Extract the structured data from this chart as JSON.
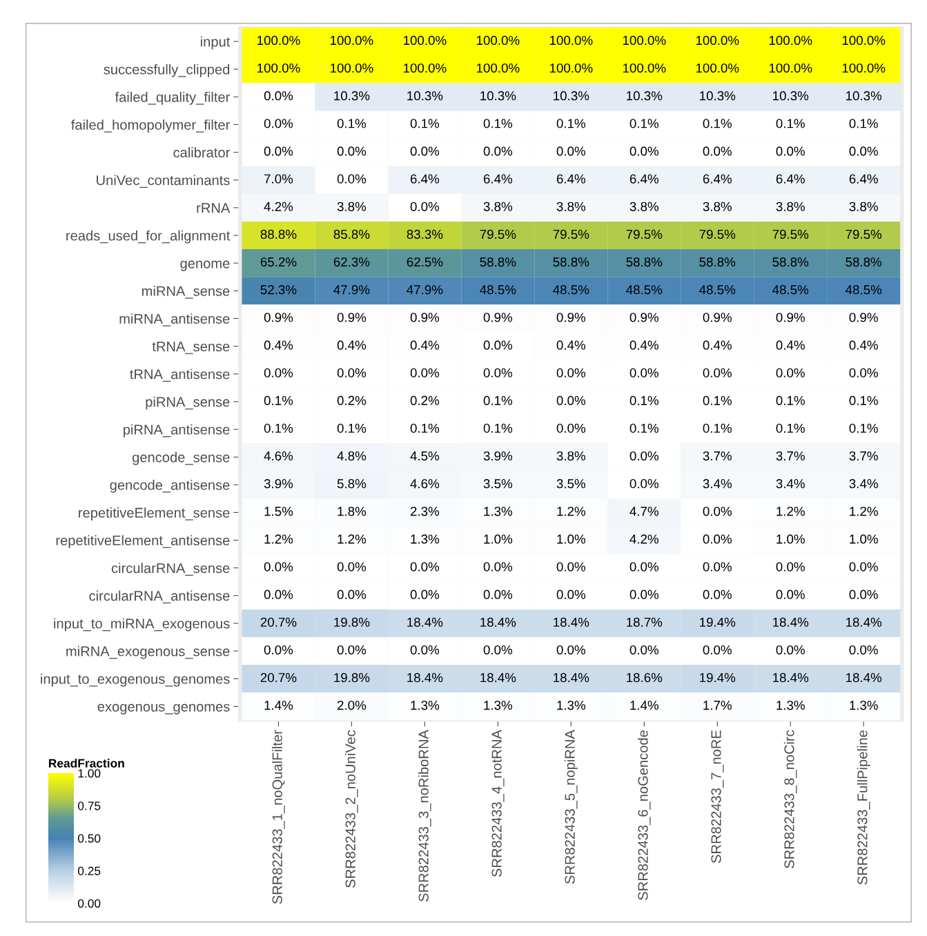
{
  "chart_data": {
    "type": "heatmap",
    "clabel": "ReadFraction",
    "categories": [
      "SRR822433_1_noQualFilter",
      "SRR822433_2_noUniVec",
      "SRR822433_3_noRiboRNA",
      "SRR822433_4_notRNA",
      "SRR822433_5_nopiRNA",
      "SRR822433_6_noGencode",
      "SRR822433_7_noRE",
      "SRR822433_8_noCirc",
      "SRR822433_FullPipeline"
    ],
    "y_categories": [
      "input",
      "successfully_clipped",
      "failed_quality_filter",
      "failed_homopolymer_filter",
      "calibrator",
      "UniVec_contaminants",
      "rRNA",
      "reads_used_for_alignment",
      "genome",
      "miRNA_sense",
      "miRNA_antisense",
      "tRNA_sense",
      "tRNA_antisense",
      "piRNA_sense",
      "piRNA_antisense",
      "gencode_sense",
      "gencode_antisense",
      "repetitiveElement_sense",
      "repetitiveElement_antisense",
      "circularRNA_sense",
      "circularRNA_antisense",
      "input_to_miRNA_exogenous",
      "miRNA_exogenous_sense",
      "input_to_exogenous_genomes",
      "exogenous_genomes"
    ],
    "cells": [
      [
        1.0,
        1.0,
        1.0,
        1.0,
        1.0,
        1.0,
        1.0,
        1.0,
        1.0
      ],
      [
        1.0,
        1.0,
        1.0,
        1.0,
        1.0,
        1.0,
        1.0,
        1.0,
        1.0
      ],
      [
        0.0,
        0.103,
        0.103,
        0.103,
        0.103,
        0.103,
        0.103,
        0.103,
        0.103
      ],
      [
        0.0,
        0.001,
        0.001,
        0.001,
        0.001,
        0.001,
        0.001,
        0.001,
        0.001
      ],
      [
        0.0,
        0.0,
        0.0,
        0.0,
        0.0,
        0.0,
        0.0,
        0.0,
        0.0
      ],
      [
        0.07,
        0.0,
        0.064,
        0.064,
        0.064,
        0.064,
        0.064,
        0.064,
        0.064
      ],
      [
        0.042,
        0.038,
        0.0,
        0.038,
        0.038,
        0.038,
        0.038,
        0.038,
        0.038
      ],
      [
        0.888,
        0.858,
        0.833,
        0.795,
        0.795,
        0.795,
        0.795,
        0.795,
        0.795
      ],
      [
        0.652,
        0.623,
        0.625,
        0.588,
        0.588,
        0.588,
        0.588,
        0.588,
        0.588
      ],
      [
        0.523,
        0.479,
        0.479,
        0.485,
        0.485,
        0.485,
        0.485,
        0.485,
        0.485
      ],
      [
        0.009,
        0.009,
        0.009,
        0.009,
        0.009,
        0.009,
        0.009,
        0.009,
        0.009
      ],
      [
        0.004,
        0.004,
        0.004,
        0.0,
        0.004,
        0.004,
        0.004,
        0.004,
        0.004
      ],
      [
        0.0,
        0.0,
        0.0,
        0.0,
        0.0,
        0.0,
        0.0,
        0.0,
        0.0
      ],
      [
        0.001,
        0.002,
        0.002,
        0.001,
        0.0,
        0.001,
        0.001,
        0.001,
        0.001
      ],
      [
        0.001,
        0.001,
        0.001,
        0.001,
        0.0,
        0.001,
        0.001,
        0.001,
        0.001
      ],
      [
        0.046,
        0.048,
        0.045,
        0.039,
        0.038,
        0.0,
        0.037,
        0.037,
        0.037
      ],
      [
        0.039,
        0.058,
        0.046,
        0.035,
        0.035,
        0.0,
        0.034,
        0.034,
        0.034
      ],
      [
        0.015,
        0.018,
        0.023,
        0.013,
        0.012,
        0.047,
        0.0,
        0.012,
        0.012
      ],
      [
        0.012,
        0.012,
        0.013,
        0.01,
        0.01,
        0.042,
        0.0,
        0.01,
        0.01
      ],
      [
        0.0,
        0.0,
        0.0,
        0.0,
        0.0,
        0.0,
        0.0,
        0.0,
        0.0
      ],
      [
        0.0,
        0.0,
        0.0,
        0.0,
        0.0,
        0.0,
        0.0,
        0.0,
        0.0
      ],
      [
        0.207,
        0.198,
        0.184,
        0.184,
        0.184,
        0.187,
        0.194,
        0.184,
        0.184
      ],
      [
        0.0,
        0.0,
        0.0,
        0.0,
        0.0,
        0.0,
        0.0,
        0.0,
        0.0
      ],
      [
        0.207,
        0.198,
        0.184,
        0.184,
        0.184,
        0.186,
        0.194,
        0.184,
        0.184
      ],
      [
        0.014,
        0.02,
        0.013,
        0.013,
        0.013,
        0.014,
        0.017,
        0.013,
        0.013
      ]
    ],
    "cell_labels": [
      [
        "100.0%",
        "100.0%",
        "100.0%",
        "100.0%",
        "100.0%",
        "100.0%",
        "100.0%",
        "100.0%",
        "100.0%"
      ],
      [
        "100.0%",
        "100.0%",
        "100.0%",
        "100.0%",
        "100.0%",
        "100.0%",
        "100.0%",
        "100.0%",
        "100.0%"
      ],
      [
        "0.0%",
        "10.3%",
        "10.3%",
        "10.3%",
        "10.3%",
        "10.3%",
        "10.3%",
        "10.3%",
        "10.3%"
      ],
      [
        "0.0%",
        "0.1%",
        "0.1%",
        "0.1%",
        "0.1%",
        "0.1%",
        "0.1%",
        "0.1%",
        "0.1%"
      ],
      [
        "0.0%",
        "0.0%",
        "0.0%",
        "0.0%",
        "0.0%",
        "0.0%",
        "0.0%",
        "0.0%",
        "0.0%"
      ],
      [
        "7.0%",
        "0.0%",
        "6.4%",
        "6.4%",
        "6.4%",
        "6.4%",
        "6.4%",
        "6.4%",
        "6.4%"
      ],
      [
        "4.2%",
        "3.8%",
        "0.0%",
        "3.8%",
        "3.8%",
        "3.8%",
        "3.8%",
        "3.8%",
        "3.8%"
      ],
      [
        "88.8%",
        "85.8%",
        "83.3%",
        "79.5%",
        "79.5%",
        "79.5%",
        "79.5%",
        "79.5%",
        "79.5%"
      ],
      [
        "65.2%",
        "62.3%",
        "62.5%",
        "58.8%",
        "58.8%",
        "58.8%",
        "58.8%",
        "58.8%",
        "58.8%"
      ],
      [
        "52.3%",
        "47.9%",
        "47.9%",
        "48.5%",
        "48.5%",
        "48.5%",
        "48.5%",
        "48.5%",
        "48.5%"
      ],
      [
        "0.9%",
        "0.9%",
        "0.9%",
        "0.9%",
        "0.9%",
        "0.9%",
        "0.9%",
        "0.9%",
        "0.9%"
      ],
      [
        "0.4%",
        "0.4%",
        "0.4%",
        "0.0%",
        "0.4%",
        "0.4%",
        "0.4%",
        "0.4%",
        "0.4%"
      ],
      [
        "0.0%",
        "0.0%",
        "0.0%",
        "0.0%",
        "0.0%",
        "0.0%",
        "0.0%",
        "0.0%",
        "0.0%"
      ],
      [
        "0.1%",
        "0.2%",
        "0.2%",
        "0.1%",
        "0.0%",
        "0.1%",
        "0.1%",
        "0.1%",
        "0.1%"
      ],
      [
        "0.1%",
        "0.1%",
        "0.1%",
        "0.1%",
        "0.0%",
        "0.1%",
        "0.1%",
        "0.1%",
        "0.1%"
      ],
      [
        "4.6%",
        "4.8%",
        "4.5%",
        "3.9%",
        "3.8%",
        "0.0%",
        "3.7%",
        "3.7%",
        "3.7%"
      ],
      [
        "3.9%",
        "5.8%",
        "4.6%",
        "3.5%",
        "3.5%",
        "0.0%",
        "3.4%",
        "3.4%",
        "3.4%"
      ],
      [
        "1.5%",
        "1.8%",
        "2.3%",
        "1.3%",
        "1.2%",
        "4.7%",
        "0.0%",
        "1.2%",
        "1.2%"
      ],
      [
        "1.2%",
        "1.2%",
        "1.3%",
        "1.0%",
        "1.0%",
        "4.2%",
        "0.0%",
        "1.0%",
        "1.0%"
      ],
      [
        "0.0%",
        "0.0%",
        "0.0%",
        "0.0%",
        "0.0%",
        "0.0%",
        "0.0%",
        "0.0%",
        "0.0%"
      ],
      [
        "0.0%",
        "0.0%",
        "0.0%",
        "0.0%",
        "0.0%",
        "0.0%",
        "0.0%",
        "0.0%",
        "0.0%"
      ],
      [
        "20.7%",
        "19.8%",
        "18.4%",
        "18.4%",
        "18.4%",
        "18.7%",
        "19.4%",
        "18.4%",
        "18.4%"
      ],
      [
        "0.0%",
        "0.0%",
        "0.0%",
        "0.0%",
        "0.0%",
        "0.0%",
        "0.0%",
        "0.0%",
        "0.0%"
      ],
      [
        "20.7%",
        "19.8%",
        "18.4%",
        "18.4%",
        "18.4%",
        "18.6%",
        "19.4%",
        "18.4%",
        "18.4%"
      ],
      [
        "1.4%",
        "2.0%",
        "1.3%",
        "1.3%",
        "1.3%",
        "1.4%",
        "1.7%",
        "1.3%",
        "1.3%"
      ]
    ],
    "clim": [
      0,
      1
    ],
    "cticks": [
      {
        "value": 0,
        "label": "0.00"
      },
      {
        "value": 0.25,
        "label": "0.25"
      },
      {
        "value": 0.5,
        "label": "0.50"
      },
      {
        "value": 0.75,
        "label": "0.75"
      },
      {
        "value": 1,
        "label": "1.00"
      }
    ]
  }
}
